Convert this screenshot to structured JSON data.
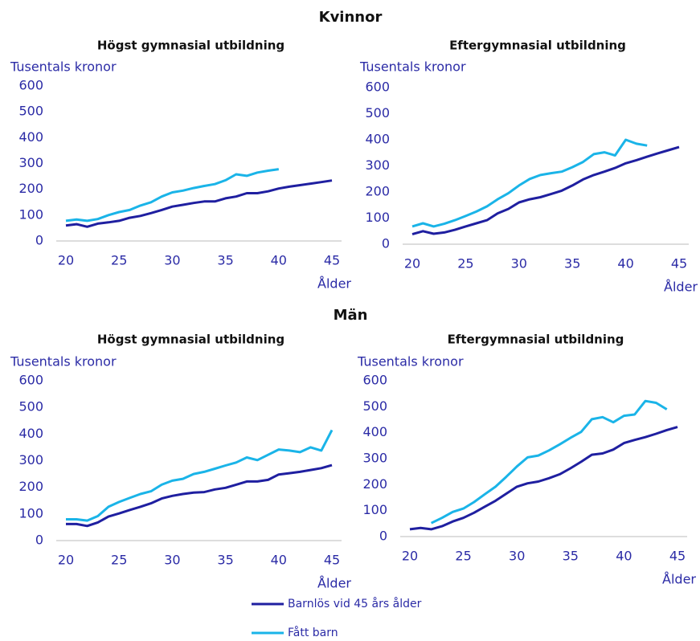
{
  "sections": [
    "Kvinnor",
    "Män"
  ],
  "chart_data": [
    {
      "type": "line",
      "title": "Högst gymnasial utbildning",
      "ylabel": "Tusentals kronor",
      "xlabel": "Ålder",
      "x": [
        20,
        21,
        22,
        23,
        24,
        25,
        26,
        27,
        28,
        29,
        30,
        31,
        32,
        33,
        34,
        35,
        36,
        37,
        38,
        39,
        40,
        41,
        42,
        43,
        44,
        45
      ],
      "xlim": [
        20,
        45
      ],
      "ylim": [
        0,
        600
      ],
      "xticks": [
        20,
        25,
        30,
        35,
        40,
        45
      ],
      "yticks": [
        0,
        100,
        200,
        300,
        400,
        500,
        600
      ],
      "series": [
        {
          "name": "Barnlös vid 45 års ålder",
          "color": "#1f1fa0",
          "values": [
            60,
            65,
            55,
            67,
            72,
            78,
            90,
            97,
            108,
            120,
            133,
            140,
            147,
            153,
            153,
            165,
            172,
            185,
            185,
            192,
            203,
            210,
            216,
            222,
            228,
            234
          ]
        },
        {
          "name": "Fått barn",
          "color": "#1ab4e8",
          "values": [
            78,
            83,
            78,
            85,
            100,
            112,
            120,
            137,
            150,
            172,
            188,
            195,
            205,
            213,
            220,
            235,
            258,
            252,
            265,
            272,
            278,
            null,
            null,
            null,
            null,
            null
          ]
        }
      ]
    },
    {
      "type": "line",
      "title": "Eftergymnasial utbildning",
      "ylabel": "Tusentals kronor",
      "xlabel": "Ålder",
      "x": [
        20,
        21,
        22,
        23,
        24,
        25,
        26,
        27,
        28,
        29,
        30,
        31,
        32,
        33,
        34,
        35,
        36,
        37,
        38,
        39,
        40,
        41,
        42,
        43,
        44,
        45
      ],
      "xlim": [
        20,
        45
      ],
      "ylim": [
        0,
        600
      ],
      "xticks": [
        20,
        25,
        30,
        35,
        40,
        45
      ],
      "yticks": [
        0,
        100,
        200,
        300,
        400,
        500,
        600
      ],
      "series": [
        {
          "name": "Barnlös vid 45 års ålder",
          "color": "#1f1fa0",
          "values": [
            38,
            50,
            40,
            45,
            55,
            68,
            80,
            92,
            118,
            135,
            160,
            172,
            180,
            192,
            205,
            225,
            248,
            265,
            278,
            292,
            310,
            322,
            335,
            348,
            360,
            372
          ]
        },
        {
          "name": "Fått barn",
          "color": "#1ab4e8",
          "values": [
            68,
            80,
            68,
            78,
            92,
            108,
            125,
            145,
            172,
            195,
            225,
            250,
            265,
            272,
            278,
            295,
            315,
            345,
            352,
            340,
            400,
            385,
            378,
            null,
            null,
            null
          ]
        }
      ]
    },
    {
      "type": "line",
      "title": "Högst gymnasial utbildning",
      "ylabel": "Tusentals kronor",
      "xlabel": "Ålder",
      "x": [
        20,
        21,
        22,
        23,
        24,
        25,
        26,
        27,
        28,
        29,
        30,
        31,
        32,
        33,
        34,
        35,
        36,
        37,
        38,
        39,
        40,
        41,
        42,
        43,
        44,
        45
      ],
      "xlim": [
        20,
        45
      ],
      "ylim": [
        0,
        600
      ],
      "xticks": [
        20,
        25,
        30,
        35,
        40,
        45
      ],
      "yticks": [
        0,
        100,
        200,
        300,
        400,
        500,
        600
      ],
      "series": [
        {
          "name": "Barnlös vid 45 års ålder",
          "color": "#1f1fa0",
          "values": [
            62,
            62,
            55,
            68,
            90,
            102,
            115,
            127,
            140,
            158,
            168,
            175,
            180,
            182,
            192,
            198,
            210,
            222,
            222,
            228,
            248,
            253,
            258,
            265,
            272,
            283
          ]
        },
        {
          "name": "Fått barn",
          "color": "#1ab4e8",
          "values": [
            80,
            80,
            75,
            92,
            127,
            145,
            160,
            175,
            185,
            210,
            225,
            232,
            250,
            258,
            270,
            282,
            293,
            312,
            302,
            322,
            342,
            338,
            332,
            350,
            338,
            415
          ]
        }
      ]
    },
    {
      "type": "line",
      "title": "Eftergymnasial utbildning",
      "ylabel": "Tusentals kronor",
      "xlabel": "Ålder",
      "x": [
        20,
        21,
        22,
        23,
        24,
        25,
        26,
        27,
        28,
        29,
        30,
        31,
        32,
        33,
        34,
        35,
        36,
        37,
        38,
        39,
        40,
        41,
        42,
        43,
        44,
        45
      ],
      "xlim": [
        20,
        45
      ],
      "ylim": [
        0,
        600
      ],
      "xticks": [
        20,
        25,
        30,
        35,
        40,
        45
      ],
      "yticks": [
        0,
        100,
        200,
        300,
        400,
        500,
        600
      ],
      "series": [
        {
          "name": "Barnlös vid 45 års ålder",
          "color": "#1f1fa0",
          "values": [
            28,
            33,
            28,
            40,
            58,
            72,
            92,
            115,
            138,
            165,
            192,
            205,
            212,
            225,
            240,
            263,
            288,
            315,
            320,
            335,
            360,
            372,
            383,
            396,
            410,
            422
          ]
        },
        {
          "name": "Fått barn",
          "color": "#1ab4e8",
          "values": [
            null,
            null,
            52,
            72,
            95,
            108,
            133,
            163,
            192,
            230,
            270,
            305,
            312,
            332,
            355,
            380,
            403,
            452,
            460,
            440,
            465,
            470,
            522,
            515,
            490,
            null
          ]
        }
      ]
    }
  ]
}
